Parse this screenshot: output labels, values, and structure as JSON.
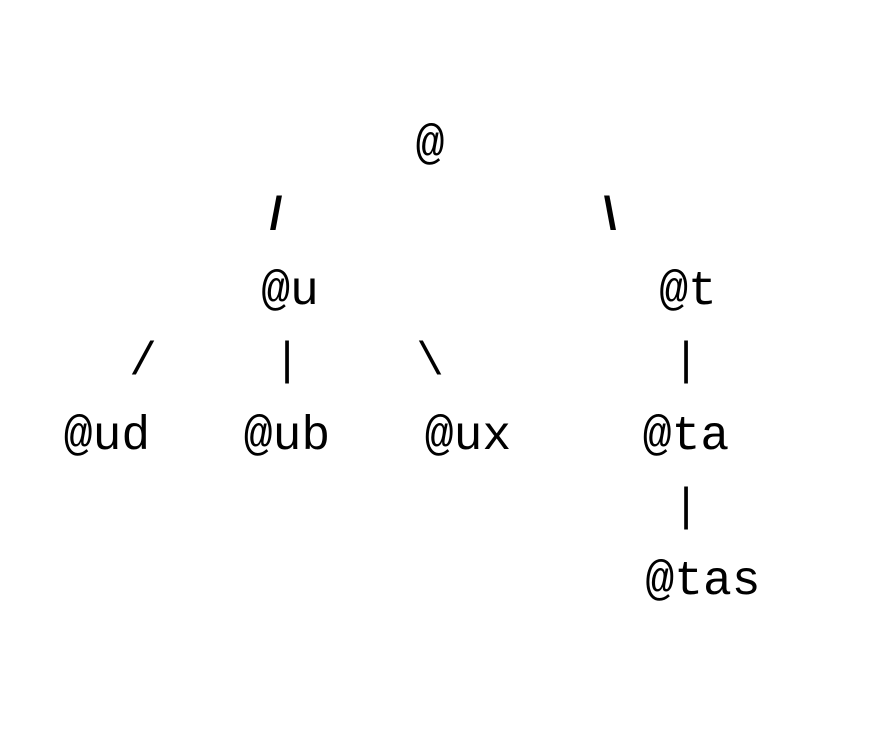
{
  "tree": {
    "nodes": {
      "root": "@",
      "u": "@u",
      "t": "@t",
      "ud": "@ud",
      "ub": "@ub",
      "ux": "@ux",
      "ta": "@ta",
      "tas": "@tas"
    },
    "edges": {
      "root_u": "/",
      "root_t": "\\",
      "u_ud": "/",
      "u_ub": "|",
      "u_ux": "\\",
      "t_ta": "|",
      "ta_tas": "|"
    }
  }
}
